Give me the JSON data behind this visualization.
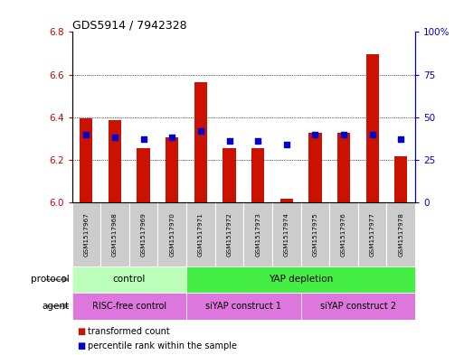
{
  "title": "GDS5914 / 7942328",
  "samples": [
    "GSM1517967",
    "GSM1517968",
    "GSM1517969",
    "GSM1517970",
    "GSM1517971",
    "GSM1517972",
    "GSM1517973",
    "GSM1517974",
    "GSM1517975",
    "GSM1517976",
    "GSM1517977",
    "GSM1517978"
  ],
  "transformed_counts": [
    6.395,
    6.385,
    6.255,
    6.305,
    6.565,
    6.255,
    6.255,
    6.015,
    6.325,
    6.325,
    6.695,
    6.215
  ],
  "percentile_ranks": [
    40,
    38,
    37,
    38,
    42,
    36,
    36,
    34,
    40,
    40,
    40,
    37
  ],
  "ylim_left": [
    6.0,
    6.8
  ],
  "ylim_right": [
    0,
    100
  ],
  "yticks_left": [
    6.0,
    6.2,
    6.4,
    6.6,
    6.8
  ],
  "yticks_right": [
    0,
    25,
    50,
    75,
    100
  ],
  "bar_color": "#cc1100",
  "dot_color": "#0000cc",
  "protocol_groups": [
    {
      "label": "control",
      "start": 0,
      "end": 3,
      "color": "#bbffbb"
    },
    {
      "label": "YAP depletion",
      "start": 4,
      "end": 11,
      "color": "#44ee44"
    }
  ],
  "agent_bounds": [
    {
      "label": "RISC-free control",
      "start": 0,
      "end": 3
    },
    {
      "label": "siYAP construct 1",
      "start": 4,
      "end": 7
    },
    {
      "label": "siYAP construct 2",
      "start": 8,
      "end": 11
    }
  ],
  "agent_color": "#dd77dd",
  "label_cell_color": "#cccccc",
  "tick_label_color_left": "#cc0000",
  "tick_label_color_right": "#0000cc",
  "grid_dotted_vals": [
    6.2,
    6.4,
    6.6
  ],
  "bar_width": 0.45
}
